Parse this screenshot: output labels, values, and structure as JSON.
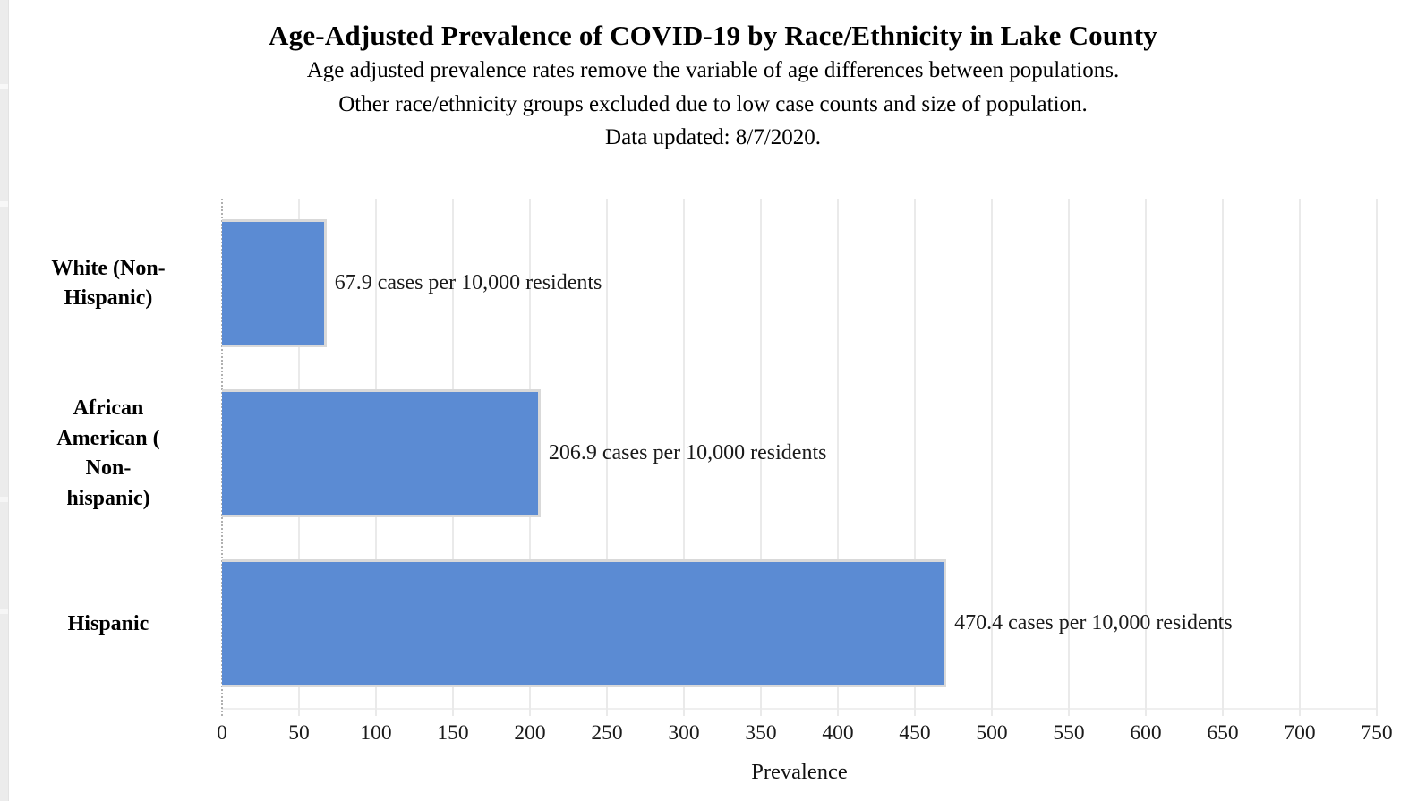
{
  "header": {
    "title": "Age-Adjusted Prevalence of COVID-19 by Race/Ethnicity in Lake County",
    "subtitle_lines": [
      "Age adjusted prevalence rates remove the variable of age differences between populations.",
      "Other race/ethnicity groups excluded due to low case counts and size of population.",
      "Data updated: 8/7/2020."
    ]
  },
  "chart_data": {
    "type": "bar",
    "orientation": "horizontal",
    "title": "Age-Adjusted Prevalence of COVID-19 by Race/Ethnicity in Lake County",
    "categories": [
      "White (Non-Hispanic)",
      "African American ( Non-hispanic)",
      "Hispanic"
    ],
    "category_label_lines": [
      [
        "White (Non-",
        "Hispanic)"
      ],
      [
        "African",
        "American (",
        "Non-",
        "hispanic)"
      ],
      [
        "Hispanic"
      ]
    ],
    "values": [
      67.9,
      206.9,
      470.4
    ],
    "bar_labels": [
      "67.9 cases per 10,000 residents",
      "206.9 cases per 10,000 residents",
      "470.4 cases per 10,000 residents"
    ],
    "xlabel": "Prevalence",
    "ylabel": "",
    "xlim": [
      0,
      750
    ],
    "x_ticks": [
      0,
      50,
      100,
      150,
      200,
      250,
      300,
      350,
      400,
      450,
      500,
      550,
      600,
      650,
      700,
      750
    ],
    "grid": "vertical-on",
    "legend": "none",
    "colors": {
      "bar_fill": "#5b8bd3",
      "bar_border": "#d9d9d9",
      "gridline": "#eaeaea",
      "zero_line_dotted": "#b0b0b0",
      "text": "#000000"
    }
  }
}
